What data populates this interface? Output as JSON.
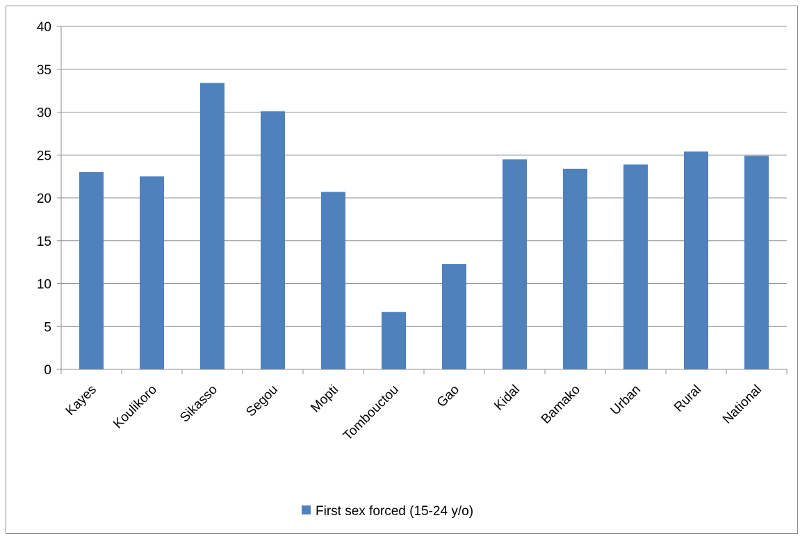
{
  "chart_data": {
    "type": "bar",
    "categories": [
      "Kayes",
      "Koulikoro",
      "Sikasso",
      "Segou",
      "Mopti",
      "Tombouctou",
      "Gao",
      "Kidal",
      "Bamako",
      "Urban",
      "Rural",
      "National"
    ],
    "series": [
      {
        "name": "First sex forced (15-24 y/o)",
        "values": [
          23.0,
          22.5,
          33.4,
          30.1,
          20.7,
          6.7,
          12.3,
          24.5,
          23.4,
          23.9,
          25.4,
          24.9
        ],
        "color": "#4F81BD"
      }
    ],
    "ylim": [
      0,
      40
    ],
    "yticks": [
      0,
      5,
      10,
      15,
      20,
      25,
      30,
      35,
      40
    ],
    "grid": true,
    "legend": "bottom"
  }
}
